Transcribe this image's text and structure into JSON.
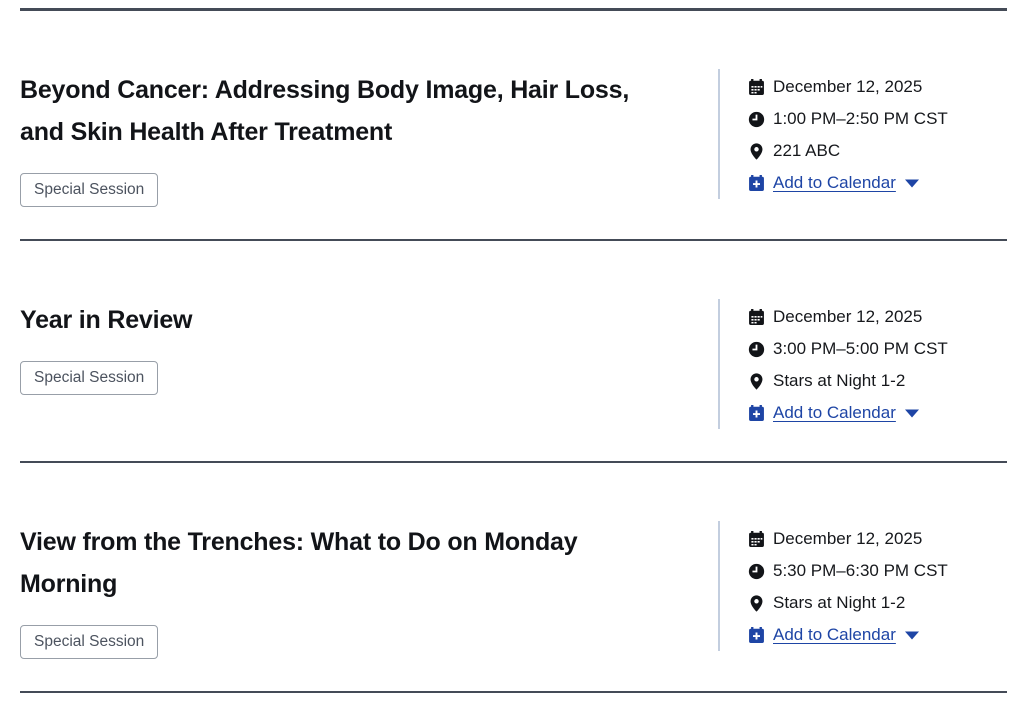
{
  "colors": {
    "section_divider": "#444b57",
    "details_divider": "#c3cedf",
    "link_blue": "#1e45a5",
    "title_text": "#121418",
    "body_text": "#16181c",
    "badge_text": "#4c535f",
    "badge_border": "#989fa8",
    "background": "#ffffff"
  },
  "icons": {
    "date": "calendar-icon",
    "time": "clock-icon",
    "location": "location-pin-icon",
    "add_to_calendar": "calendar-plus-icon",
    "dropdown": "caret-down-icon"
  },
  "sessions": [
    {
      "title": "Beyond Cancer: Addressing Body Image, Hair Loss, and Skin Health After Treatment",
      "title_lines": [
        "Beyond Cancer: Addressing Body Image, Hair Loss,",
        "and Skin Health After Treatment"
      ],
      "badge": "Special Session",
      "date": "December 12, 2025",
      "time": "1:00 PM–2:50 PM CST",
      "location": "221 ABC",
      "calendar_link": "Add to Calendar"
    },
    {
      "title": "Year in Review",
      "title_lines": [
        "Year in Review"
      ],
      "badge": "Special Session",
      "date": "December 12, 2025",
      "time": "3:00 PM–5:00 PM CST",
      "location": "Stars at Night 1-2",
      "calendar_link": "Add to Calendar"
    },
    {
      "title": "View from the Trenches: What to Do on Monday Morning",
      "title_lines": [
        "View from the Trenches: What to Do on Monday",
        "Morning"
      ],
      "badge": "Special Session",
      "date": "December 12, 2025",
      "time": "5:30 PM–6:30 PM CST",
      "location": "Stars at Night 1-2",
      "calendar_link": "Add to Calendar"
    }
  ]
}
